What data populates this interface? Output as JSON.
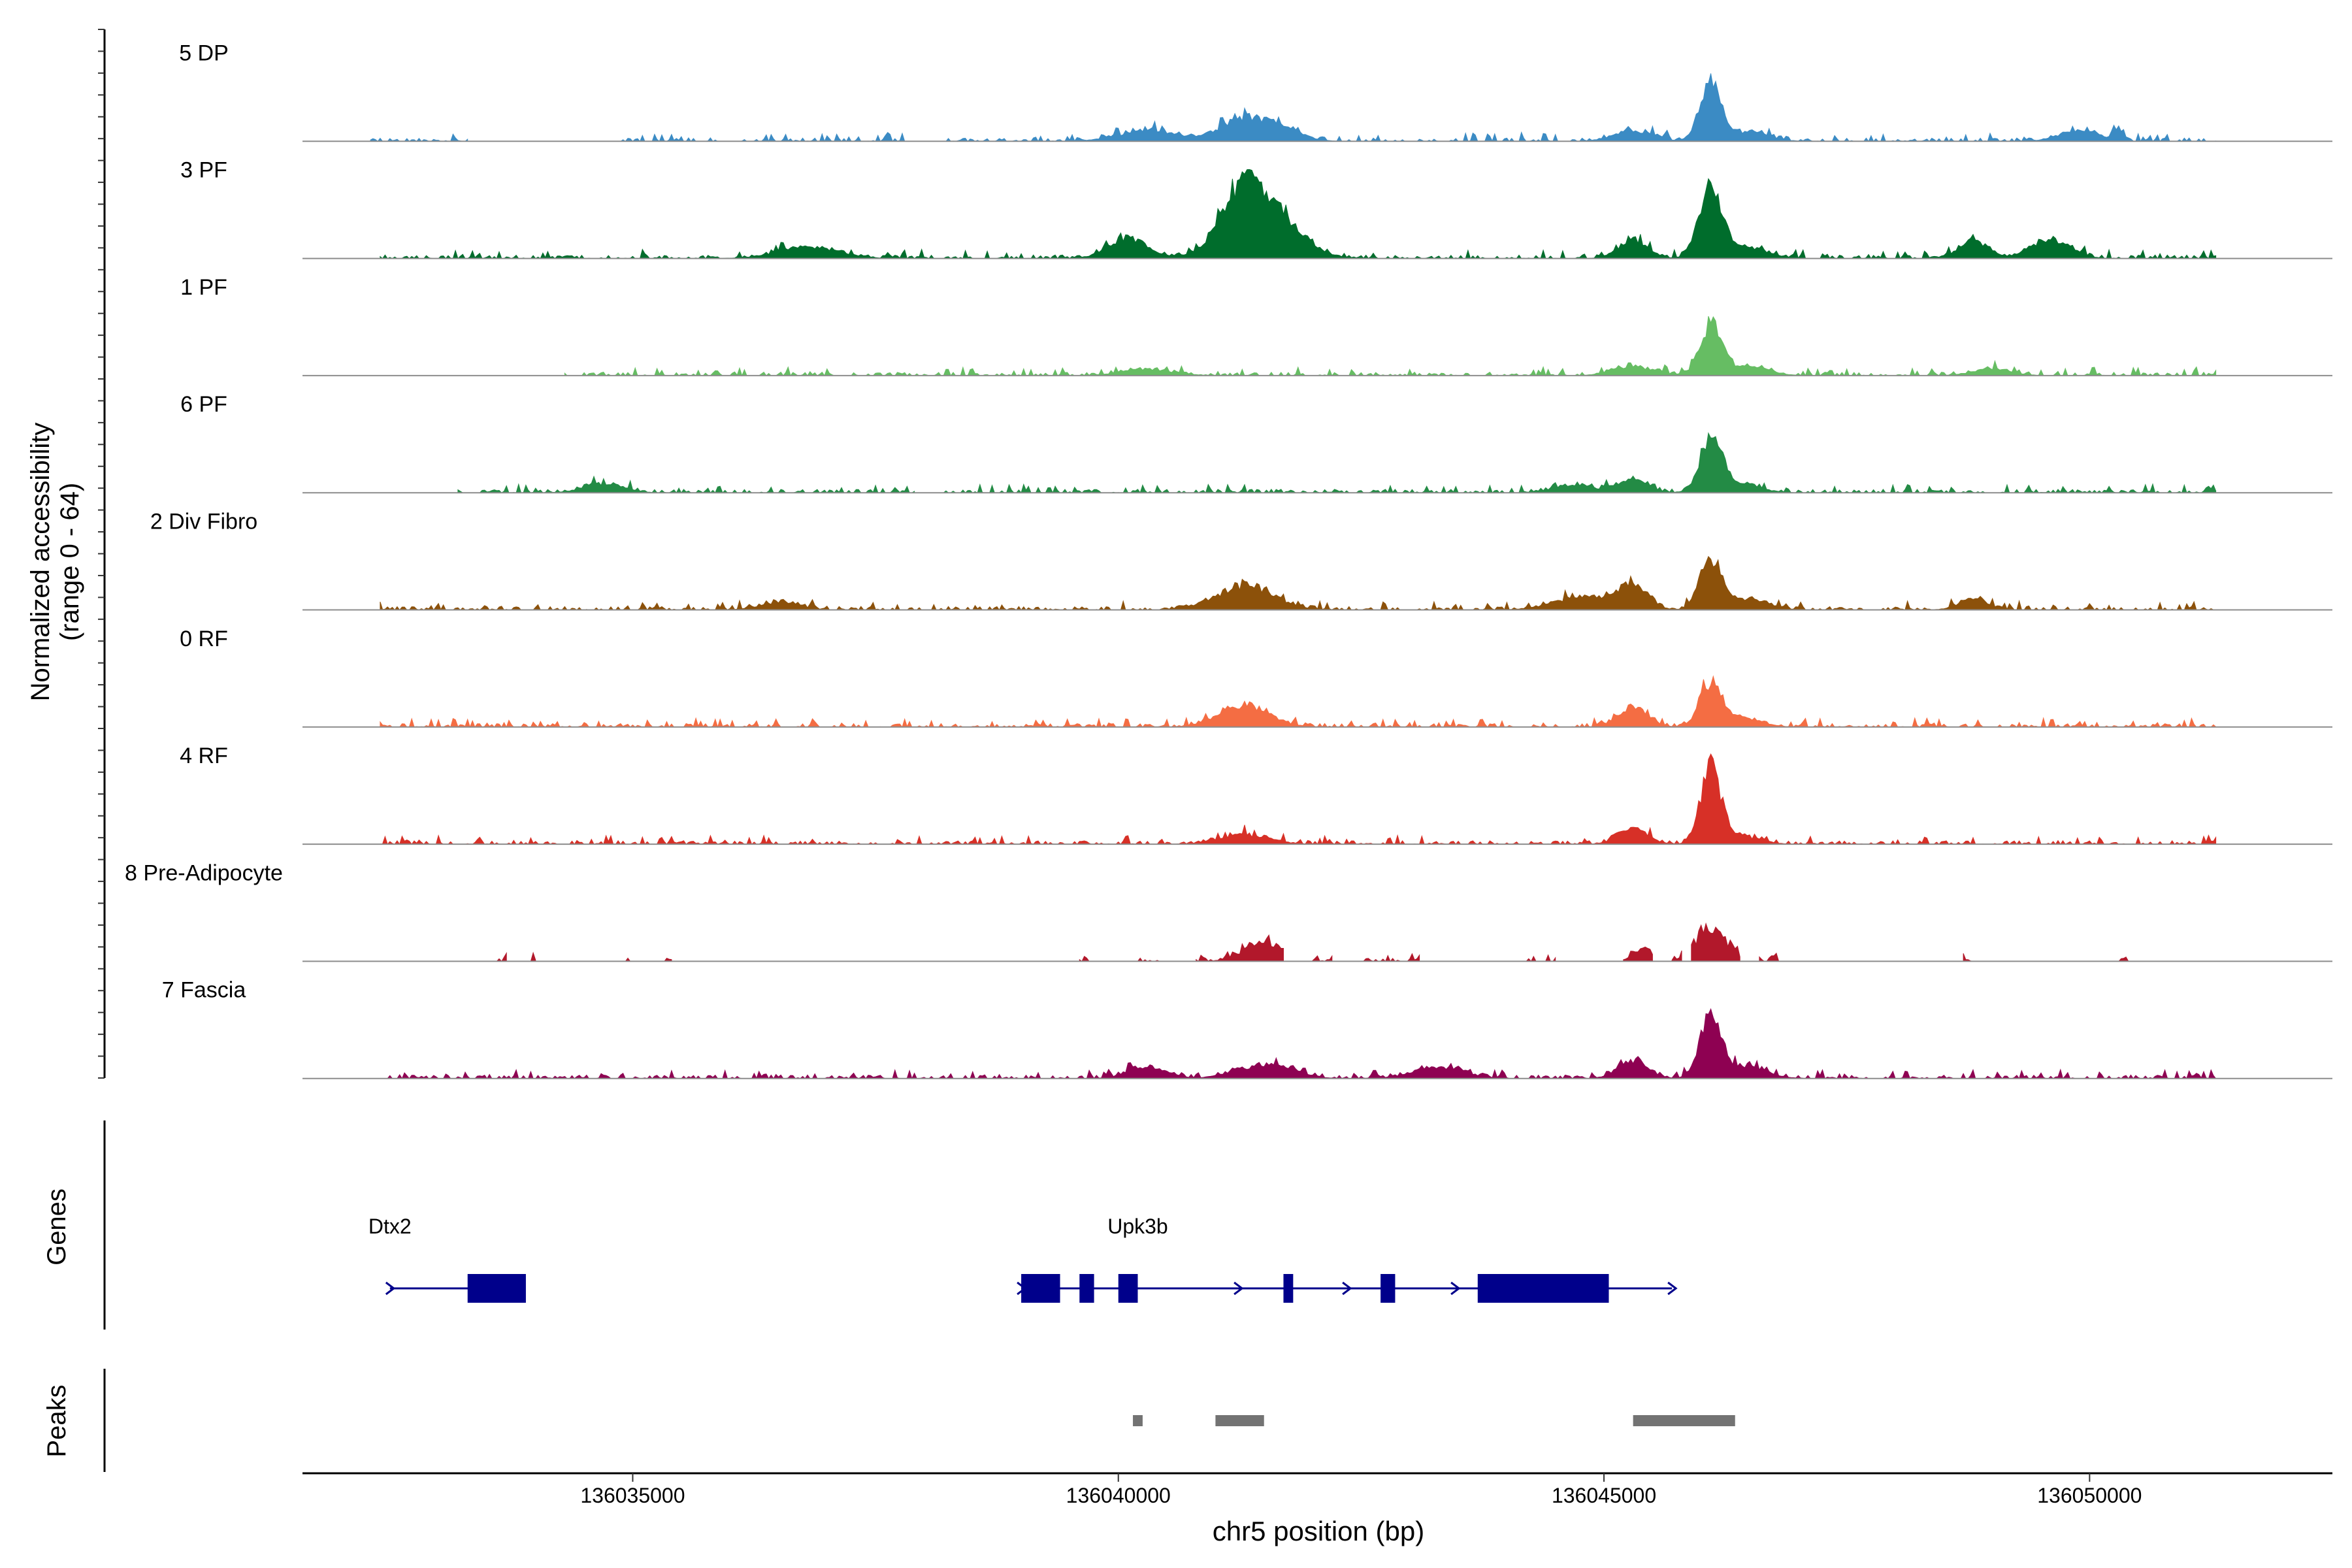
{
  "chart_data": {
    "type": "area",
    "title": "",
    "ylabel_line1": "Normalized accessibility",
    "ylabel_line2": "(range 0 - 64)",
    "xlabel": "chr5 position (bp)",
    "xlim": [
      136031600,
      136052500
    ],
    "x_ticks": [
      136035000,
      136040000,
      136045000,
      136050000
    ],
    "x_tick_labels": [
      "136035000",
      "136040000",
      "136045000",
      "136050000"
    ],
    "track_ylim": [
      0,
      64
    ],
    "tracks": [
      {
        "name": "5 DP",
        "color": "#3b8bc4",
        "regions": [
          [
            136032300,
            136033300
          ],
          [
            136034800,
            136037800
          ],
          [
            136038200,
            136051300
          ]
        ],
        "peaks": [
          [
            136040300,
            8,
            300
          ],
          [
            136041300,
            17,
            250
          ],
          [
            136041700,
            8,
            200
          ],
          [
            136045300,
            8,
            200
          ],
          [
            136046100,
            46,
            110
          ],
          [
            136046500,
            7,
            200
          ],
          [
            136049900,
            8,
            200
          ],
          [
            136050300,
            8,
            50
          ]
        ]
      },
      {
        "name": "3 PF",
        "color": "#006d2c",
        "regions": [
          [
            136032400,
            136051300
          ]
        ],
        "peaks": [
          [
            136036800,
            9,
            300
          ],
          [
            136040100,
            16,
            200
          ],
          [
            136041300,
            44,
            250
          ],
          [
            136041600,
            26,
            300
          ],
          [
            136045300,
            14,
            150
          ],
          [
            136046100,
            54,
            120
          ],
          [
            136046500,
            8,
            200
          ],
          [
            136048800,
            13,
            150
          ],
          [
            136049600,
            14,
            200
          ]
        ]
      },
      {
        "name": "1 PF",
        "color": "#66bd63",
        "regions": [
          [
            136034300,
            136051300
          ]
        ],
        "peaks": [
          [
            136040300,
            5,
            250
          ],
          [
            136045300,
            7,
            200
          ],
          [
            136046100,
            38,
            110
          ],
          [
            136046500,
            7,
            200
          ],
          [
            136049000,
            5,
            200
          ]
        ]
      },
      {
        "name": "6 PF",
        "color": "#238b45",
        "regions": [
          [
            136033200,
            136037900
          ],
          [
            136038200,
            136051300
          ]
        ],
        "peaks": [
          [
            136034700,
            7,
            200
          ],
          [
            136044700,
            6,
            200
          ],
          [
            136045300,
            11,
            150
          ],
          [
            136046100,
            42,
            110
          ],
          [
            136046400,
            7,
            200
          ]
        ]
      },
      {
        "name": "2 Div Fibro",
        "color": "#8c510a",
        "regions": [
          [
            136032400,
            136051300
          ]
        ],
        "peaks": [
          [
            136036500,
            5,
            200
          ],
          [
            136041300,
            18,
            300
          ],
          [
            136044800,
            10,
            300
          ],
          [
            136045300,
            16,
            150
          ],
          [
            136046100,
            40,
            110
          ],
          [
            136046500,
            8,
            200
          ],
          [
            136048800,
            8,
            150
          ]
        ]
      },
      {
        "name": "0 RF",
        "color": "#f46d43",
        "regions": [
          [
            136032400,
            136051300
          ]
        ],
        "peaks": [
          [
            136041300,
            17,
            250
          ],
          [
            136045300,
            16,
            150
          ],
          [
            136046100,
            33,
            110
          ],
          [
            136046400,
            7,
            200
          ]
        ]
      },
      {
        "name": "4 RF",
        "color": "#d73027",
        "regions": [
          [
            136032400,
            136051300
          ]
        ],
        "peaks": [
          [
            136041300,
            7,
            250
          ],
          [
            136045300,
            12,
            150
          ],
          [
            136046100,
            60,
            100
          ],
          [
            136046400,
            6,
            200
          ]
        ]
      },
      {
        "name": "8 Pre-Adipocyte",
        "color": "#b2182b",
        "regions": [
          [
            136033600,
            136033700
          ],
          [
            136033900,
            136034000
          ],
          [
            136034900,
            136035000
          ],
          [
            136035300,
            136035400
          ],
          [
            136039600,
            136039700
          ],
          [
            136040200,
            136040500
          ],
          [
            136040800,
            136041700
          ],
          [
            136042000,
            136042200
          ],
          [
            136042500,
            136043100
          ],
          [
            136044200,
            136044300
          ],
          [
            136044400,
            136044500
          ],
          [
            136045200,
            136045500
          ],
          [
            136045700,
            136045800
          ],
          [
            136045900,
            136046400
          ],
          [
            136046600,
            136046800
          ],
          [
            136048700,
            136048800
          ],
          [
            136050300,
            136050400
          ]
        ],
        "peaks": [
          [
            136041500,
            15,
            200
          ],
          [
            136046100,
            26,
            150
          ],
          [
            136045400,
            10,
            100
          ]
        ]
      },
      {
        "name": "7 Fascia",
        "color": "#8e0152",
        "regions": [
          [
            136032400,
            136051300
          ]
        ],
        "peaks": [
          [
            136040300,
            8,
            200
          ],
          [
            136041300,
            7,
            200
          ],
          [
            136041700,
            8,
            200
          ],
          [
            136043300,
            9,
            250
          ],
          [
            136045300,
            14,
            150
          ],
          [
            136046100,
            50,
            110
          ],
          [
            136046500,
            8,
            200
          ]
        ]
      }
    ],
    "genes_label": "Genes",
    "genes": [
      {
        "name": "Dtx2",
        "strand": "+",
        "start": 136032500,
        "end": 136033450,
        "label_pos": 136032500,
        "exons": [
          [
            136033300,
            136033900
          ]
        ]
      },
      {
        "name": "Upk3b",
        "strand": "+",
        "start": 136039000,
        "end": 136045700,
        "label_pos": 136040200,
        "exons": [
          [
            136039000,
            136039400
          ],
          [
            136039600,
            136039750
          ],
          [
            136040000,
            136040200
          ],
          [
            136041700,
            136041800
          ],
          [
            136042700,
            136042850
          ],
          [
            136043700,
            136045050
          ]
        ]
      }
    ],
    "peaks_label": "Peaks",
    "peak_regions": [
      [
        136040150,
        136040250
      ],
      [
        136041000,
        136041500
      ],
      [
        136045300,
        136046350
      ]
    ]
  }
}
